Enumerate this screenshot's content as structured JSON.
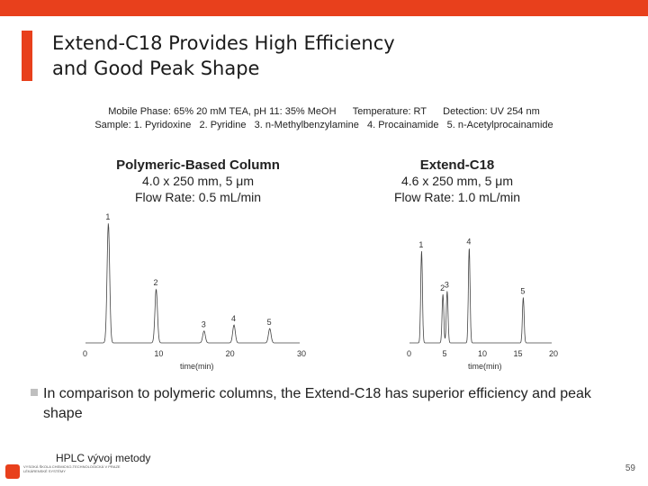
{
  "slide": {
    "title_line1": "Extend-C18 Provides High Efficiency",
    "title_line2": "and Good Peak Shape",
    "conditions_line1": "Mobile Phase: 65% 20 mM TEA, pH 11: 35% MeOH      Temperature: RT      Detection: UV 254 nm",
    "conditions_line2": "Sample: 1. Pyridoxine   2. Pyridine   3. n-Methylbenzylamine   4. Procainamide   5. n-Acetylprocainamide",
    "left_column": {
      "heading": "Polymeric-Based Column",
      "dimensions": "4.0 x 250 mm, 5 μm",
      "flow": "Flow Rate: 0.5 mL/min"
    },
    "right_column": {
      "heading": "Extend-C18",
      "dimensions": "4.6 x 250 mm, 5 μm",
      "flow": "Flow Rate: 1.0 mL/min"
    },
    "bullet_text": "In comparison to polymeric columns, the Extend-C18 has superior efficiency and peak shape",
    "footer_text": "HPLC vývoj metody",
    "logo_text": "VYSOKÁ ŠKOLA CHEMICKO-TECHNOLOGICKÁ V PRAZE LÉKÁRENSKÉ SYSTÉMY",
    "page_number": "59",
    "accent_color": "#e8401c"
  },
  "chart_data": [
    {
      "type": "line",
      "xlabel": "time(min)",
      "xlim": [
        0,
        30
      ],
      "ticks": [
        "0",
        "10",
        "20",
        "30"
      ],
      "tick_values": [
        0,
        10,
        20,
        30
      ],
      "peaks": [
        {
          "label": "1",
          "time": 3.2,
          "height": 1.0
        },
        {
          "label": "2",
          "time": 9.9,
          "height": 0.45
        },
        {
          "label": "3",
          "time": 16.6,
          "height": 0.1
        },
        {
          "label": "4",
          "time": 20.8,
          "height": 0.15
        },
        {
          "label": "5",
          "time": 25.8,
          "height": 0.12
        }
      ]
    },
    {
      "type": "line",
      "xlabel": "time(min)",
      "xlim": [
        0,
        20
      ],
      "ticks": [
        "0",
        "5",
        "10",
        "15",
        "20"
      ],
      "tick_values": [
        0,
        5,
        10,
        15,
        20
      ],
      "peaks": [
        {
          "label": "1",
          "time": 1.7,
          "height": 0.85
        },
        {
          "label": "2",
          "time": 4.7,
          "height": 0.45
        },
        {
          "label": "3",
          "time": 5.3,
          "height": 0.48
        },
        {
          "label": "4",
          "time": 8.4,
          "height": 0.88
        },
        {
          "label": "5",
          "time": 16.0,
          "height": 0.42
        }
      ]
    }
  ]
}
